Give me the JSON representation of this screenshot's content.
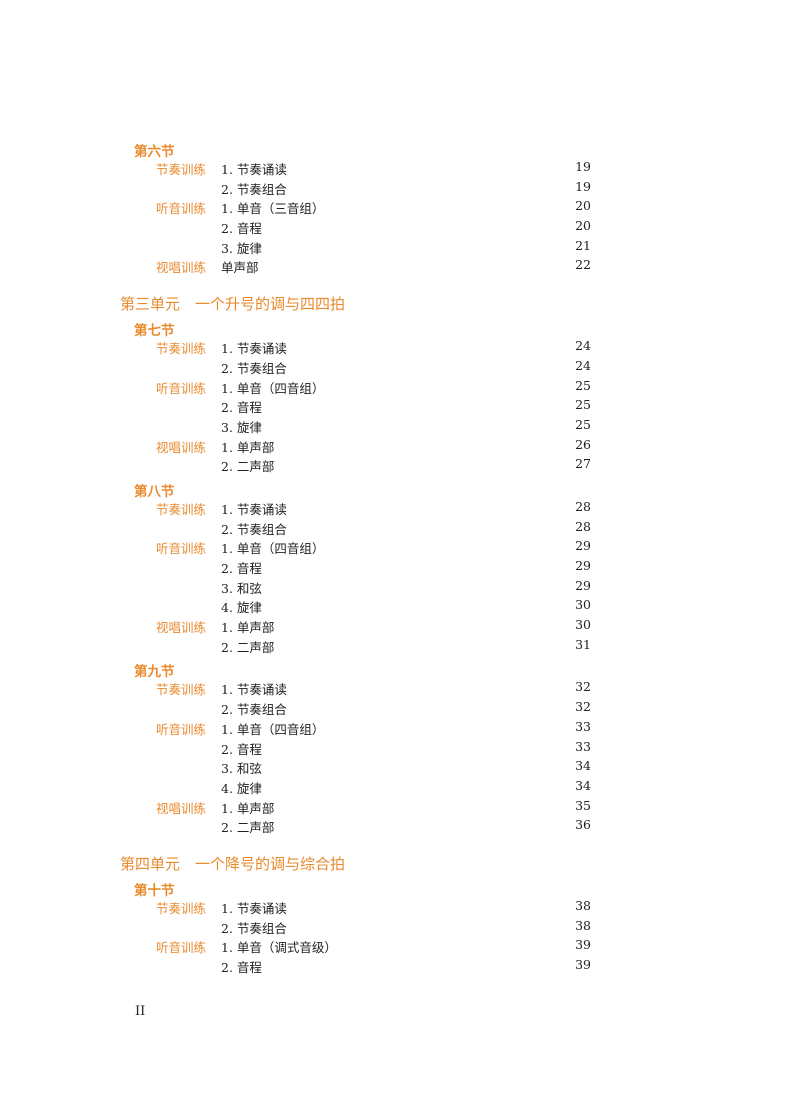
{
  "toc": [
    {
      "unit": null,
      "sections": [
        {
          "title": "第六节",
          "rows": [
            {
              "cat": "节奏训练",
              "item": "1. 节奏诵读",
              "page": "19"
            },
            {
              "cat": "",
              "item": "2. 节奏组合",
              "page": "19"
            },
            {
              "cat": "听音训练",
              "item": "1. 单音（三音组）",
              "page": "20"
            },
            {
              "cat": "",
              "item": "2. 音程",
              "page": "20"
            },
            {
              "cat": "",
              "item": "3. 旋律",
              "page": "21"
            },
            {
              "cat": "视唱训练",
              "item": "单声部",
              "page": "22"
            }
          ]
        }
      ]
    },
    {
      "unit": "第三单元　一个升号的调与四四拍",
      "sections": [
        {
          "title": "第七节",
          "rows": [
            {
              "cat": "节奏训练",
              "item": "1. 节奏诵读",
              "page": "24"
            },
            {
              "cat": "",
              "item": "2. 节奏组合",
              "page": "24"
            },
            {
              "cat": "听音训练",
              "item": "1. 单音（四音组）",
              "page": "25"
            },
            {
              "cat": "",
              "item": "2. 音程",
              "page": "25"
            },
            {
              "cat": "",
              "item": "3. 旋律",
              "page": "25"
            },
            {
              "cat": "视唱训练",
              "item": "1. 单声部",
              "page": "26"
            },
            {
              "cat": "",
              "item": "2. 二声部",
              "page": "27"
            }
          ]
        },
        {
          "title": "第八节",
          "rows": [
            {
              "cat": "节奏训练",
              "item": "1. 节奏诵读",
              "page": "28"
            },
            {
              "cat": "",
              "item": "2. 节奏组合",
              "page": "28"
            },
            {
              "cat": "听音训练",
              "item": "1. 单音（四音组）",
              "page": "29"
            },
            {
              "cat": "",
              "item": "2. 音程",
              "page": "29"
            },
            {
              "cat": "",
              "item": "3. 和弦",
              "page": "29"
            },
            {
              "cat": "",
              "item": "4. 旋律",
              "page": "30"
            },
            {
              "cat": "视唱训练",
              "item": "1. 单声部",
              "page": "30"
            },
            {
              "cat": "",
              "item": "2. 二声部",
              "page": "31"
            }
          ]
        },
        {
          "title": "第九节",
          "rows": [
            {
              "cat": "节奏训练",
              "item": "1. 节奏诵读",
              "page": "32"
            },
            {
              "cat": "",
              "item": "2. 节奏组合",
              "page": "32"
            },
            {
              "cat": "听音训练",
              "item": "1. 单音（四音组）",
              "page": "33"
            },
            {
              "cat": "",
              "item": "2. 音程",
              "page": "33"
            },
            {
              "cat": "",
              "item": "3. 和弦",
              "page": "34"
            },
            {
              "cat": "",
              "item": "4. 旋律",
              "page": "34"
            },
            {
              "cat": "视唱训练",
              "item": "1. 单声部",
              "page": "35"
            },
            {
              "cat": "",
              "item": "2. 二声部",
              "page": "36"
            }
          ]
        }
      ]
    },
    {
      "unit": "第四单元　一个降号的调与综合拍",
      "sections": [
        {
          "title": "第十节",
          "rows": [
            {
              "cat": "节奏训练",
              "item": "1. 节奏诵读",
              "page": "38"
            },
            {
              "cat": "",
              "item": "2. 节奏组合",
              "page": "38"
            },
            {
              "cat": "听音训练",
              "item": "1. 单音（调式音级）",
              "page": "39"
            },
            {
              "cat": "",
              "item": "2. 音程",
              "page": "39"
            }
          ]
        }
      ]
    }
  ],
  "page_number": "II",
  "colors": {
    "accent": "#e98a2e",
    "text": "#222222"
  }
}
